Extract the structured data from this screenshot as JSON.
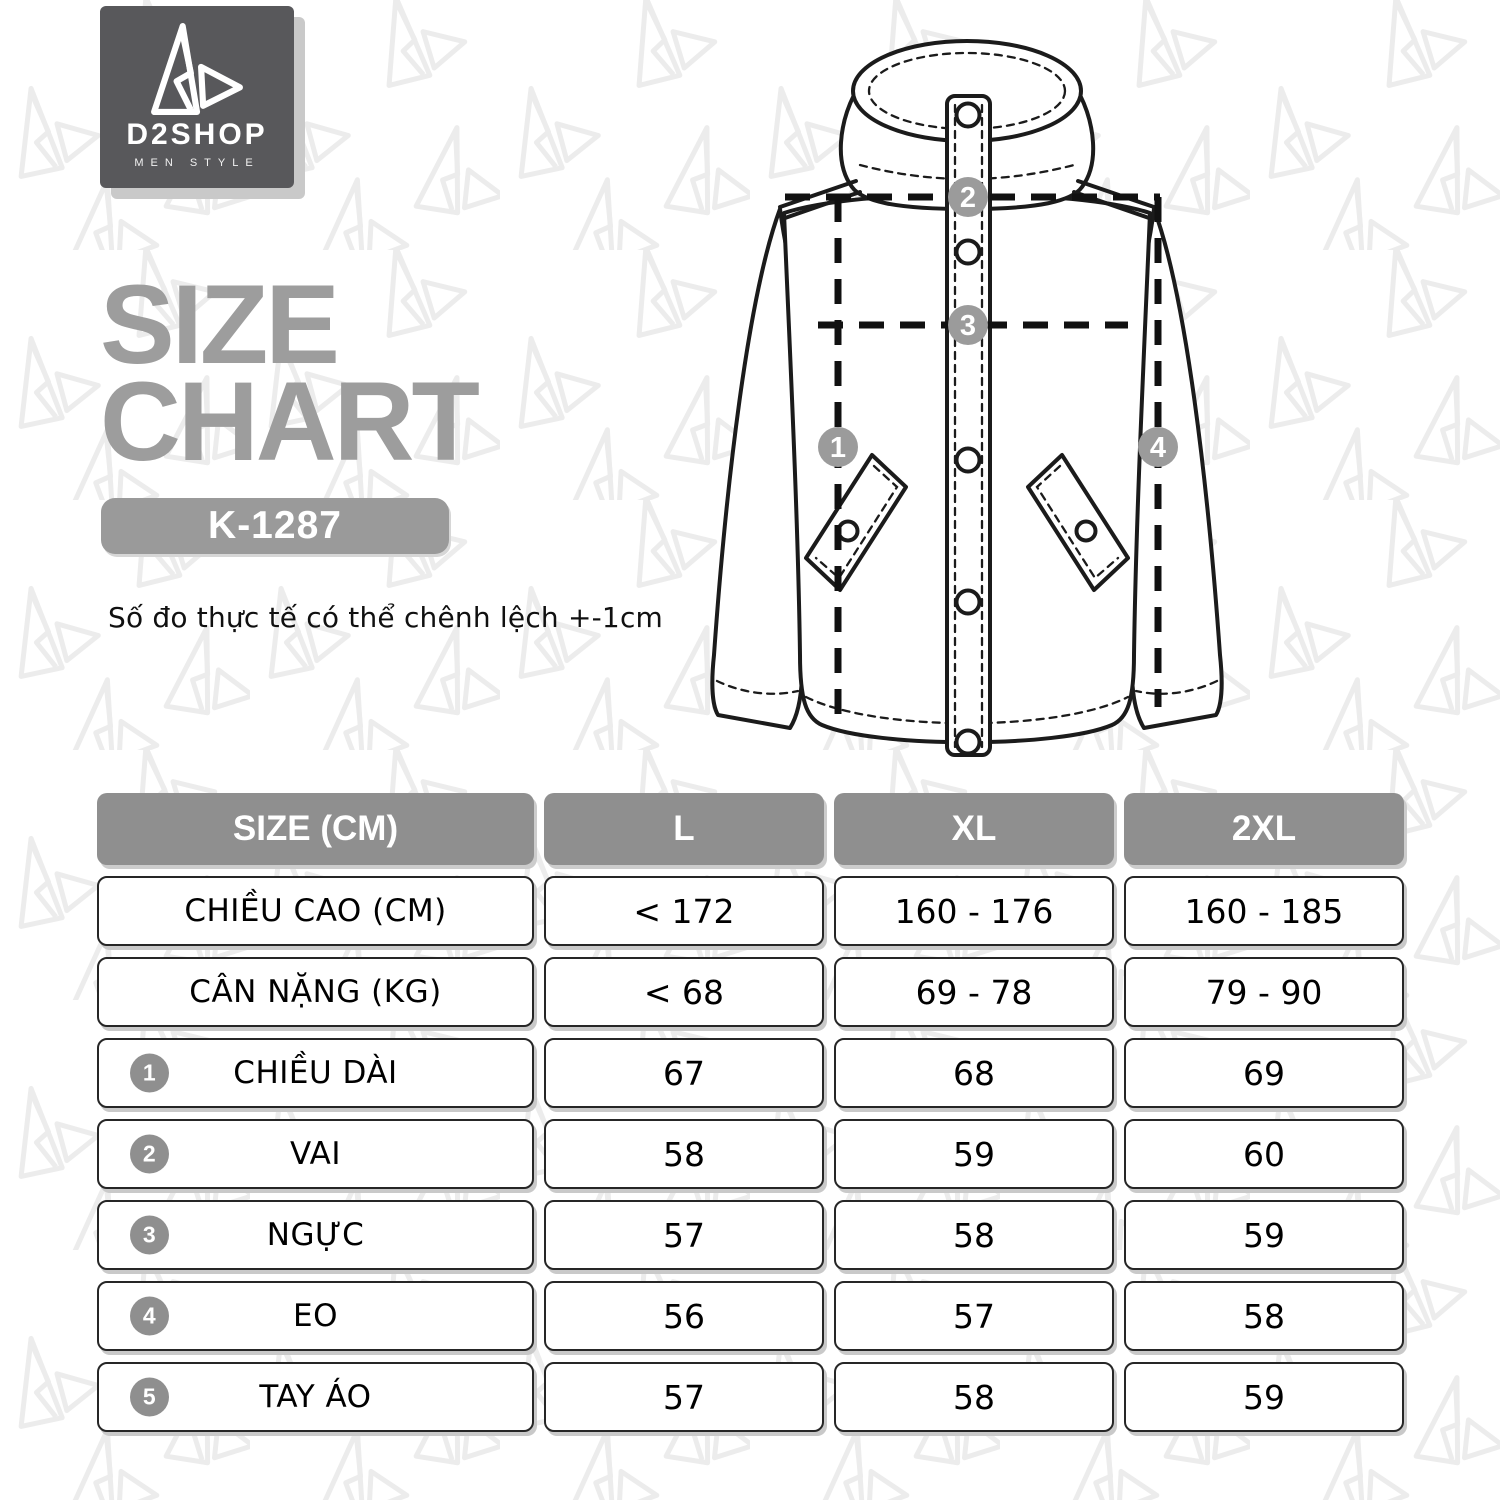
{
  "brand": {
    "name": "D2SHOP",
    "tagline": "MEN STYLE"
  },
  "title": {
    "line1": "SIZE",
    "line2": "CHART"
  },
  "product_code": "K-1287",
  "note": "Số đo thực tế có thể chênh lệch +-1cm",
  "diagram": {
    "markers": [
      "1",
      "2",
      "3",
      "4"
    ]
  },
  "colors": {
    "logo_bg": "#58585b",
    "title_gray": "#9d9d9d",
    "header_gray": "#8f8f8f",
    "badge_gray": "#9a9a9a",
    "marker_gray": "#9b9b9b",
    "watermark": "#ececec"
  },
  "size_table": {
    "header": [
      "SIZE (CM)",
      "L",
      "XL",
      "2XL"
    ],
    "rows": [
      {
        "badge": null,
        "label": "CHIỀU CAO (CM)",
        "values": [
          "< 172",
          "160 - 176",
          "160 - 185"
        ]
      },
      {
        "badge": null,
        "label": "CÂN NẶNG (KG)",
        "values": [
          "< 68",
          "69 - 78",
          "79 - 90"
        ]
      },
      {
        "badge": "1",
        "label": "CHIỀU DÀI",
        "values": [
          "67",
          "68",
          "69"
        ]
      },
      {
        "badge": "2",
        "label": "VAI",
        "values": [
          "58",
          "59",
          "60"
        ]
      },
      {
        "badge": "3",
        "label": "NGỰC",
        "values": [
          "57",
          "58",
          "59"
        ]
      },
      {
        "badge": "4",
        "label": "EO",
        "values": [
          "56",
          "57",
          "58"
        ]
      },
      {
        "badge": "5",
        "label": "TAY ÁO",
        "values": [
          "57",
          "58",
          "59"
        ]
      }
    ]
  }
}
